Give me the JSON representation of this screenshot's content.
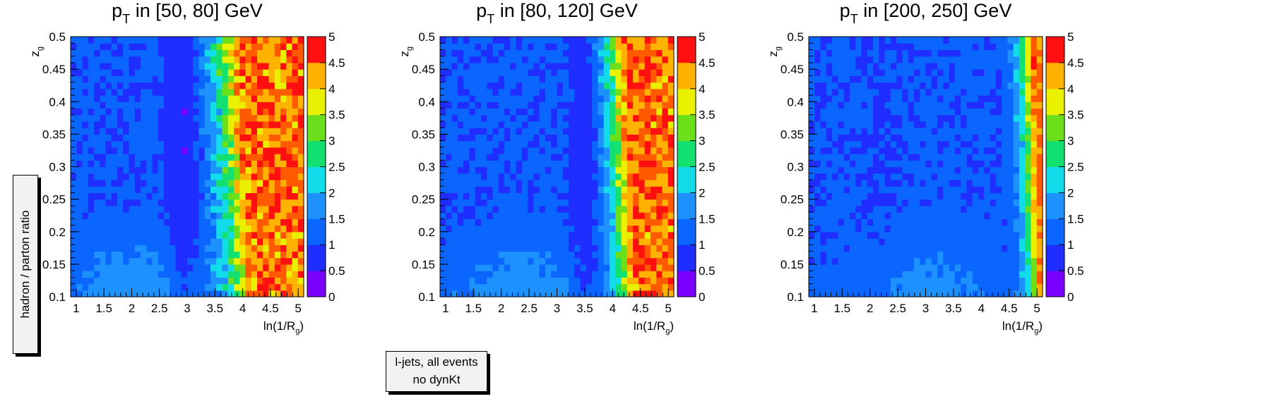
{
  "figure": {
    "ylabel": "hadron / parton ratio",
    "legend_line1": "l-jets, all events",
    "legend_line2": "no dynKt"
  },
  "chart_data": [
    {
      "type": "heatmap",
      "title_main": "p",
      "title_sub": "T",
      "title_rest": " in [50, 80] GeV",
      "xlabel_main": "ln(1/R",
      "xlabel_sub": "g",
      "xlabel_close": ")",
      "ylabel_main": "z",
      "ylabel_sub": "g",
      "xlim": [
        0.9,
        5.1
      ],
      "ylim": [
        0.1,
        0.5
      ],
      "x_ticks": [
        "1",
        "1.5",
        "2",
        "2.5",
        "3",
        "3.5",
        "4",
        "4.5",
        "5"
      ],
      "y_ticks": [
        "0.1",
        "0.15",
        "0.2",
        "0.25",
        "0.3",
        "0.35",
        "0.4",
        "0.45",
        "0.5"
      ],
      "z_range": [
        0,
        5
      ],
      "z_ticks": [
        "0",
        "0.5",
        "1",
        "1.5",
        "2",
        "2.5",
        "3",
        "3.5",
        "4",
        "4.5",
        "5"
      ],
      "nx": 40,
      "ny": 40,
      "ridge_x": 3.62,
      "ridge_slope": 0.25,
      "ridge_width": 0.18,
      "valley_x": 2.95,
      "valley_depth": 0.45,
      "lowz_boost": 0.85,
      "lowz_center_x": 1.95,
      "high_level": 4.6,
      "noise": 1.6
    },
    {
      "type": "heatmap",
      "title_main": "p",
      "title_sub": "T",
      "title_rest": " in [80, 120] GeV",
      "xlabel_main": "ln(1/R",
      "xlabel_sub": "g",
      "xlabel_close": ")",
      "ylabel_main": "z",
      "ylabel_sub": "g",
      "xlim": [
        0.9,
        5.1
      ],
      "ylim": [
        0.1,
        0.5
      ],
      "x_ticks": [
        "1",
        "1.5",
        "2",
        "2.5",
        "3",
        "3.5",
        "4",
        "4.5",
        "5"
      ],
      "y_ticks": [
        "0.1",
        "0.15",
        "0.2",
        "0.25",
        "0.3",
        "0.35",
        "0.4",
        "0.45",
        "0.5"
      ],
      "z_range": [
        0,
        5
      ],
      "z_ticks": [
        "0",
        "0.5",
        "1",
        "1.5",
        "2",
        "2.5",
        "3",
        "3.5",
        "4",
        "4.5",
        "5"
      ],
      "nx": 40,
      "ny": 40,
      "ridge_x": 3.98,
      "ridge_slope": 0.2,
      "ridge_width": 0.14,
      "valley_x": 3.55,
      "valley_depth": 0.4,
      "lowz_boost": 0.8,
      "lowz_center_x": 2.35,
      "high_level": 4.7,
      "noise": 1.4
    },
    {
      "type": "heatmap",
      "title_main": "p",
      "title_sub": "T",
      "title_rest": " in [200, 250] GeV",
      "xlabel_main": "ln(1/R",
      "xlabel_sub": "g",
      "xlabel_close": ")",
      "ylabel_main": "z",
      "ylabel_sub": "g",
      "xlim": [
        0.9,
        5.1
      ],
      "ylim": [
        0.1,
        0.5
      ],
      "x_ticks": [
        "1",
        "1.5",
        "2",
        "2.5",
        "3",
        "3.5",
        "4",
        "4.5",
        "5"
      ],
      "y_ticks": [
        "0.1",
        "0.15",
        "0.2",
        "0.25",
        "0.3",
        "0.35",
        "0.4",
        "0.45",
        "0.5"
      ],
      "z_range": [
        0,
        5
      ],
      "z_ticks": [
        "0",
        "0.5",
        "1",
        "1.5",
        "2",
        "2.5",
        "3",
        "3.5",
        "4",
        "4.5",
        "5"
      ],
      "nx": 40,
      "ny": 40,
      "ridge_x": 4.78,
      "ridge_slope": 0.18,
      "ridge_width": 0.1,
      "valley_x": 2.2,
      "valley_depth": 0.1,
      "lowz_boost": 0.7,
      "lowz_center_x": 3.05,
      "high_level": 4.6,
      "noise": 0.8
    }
  ]
}
